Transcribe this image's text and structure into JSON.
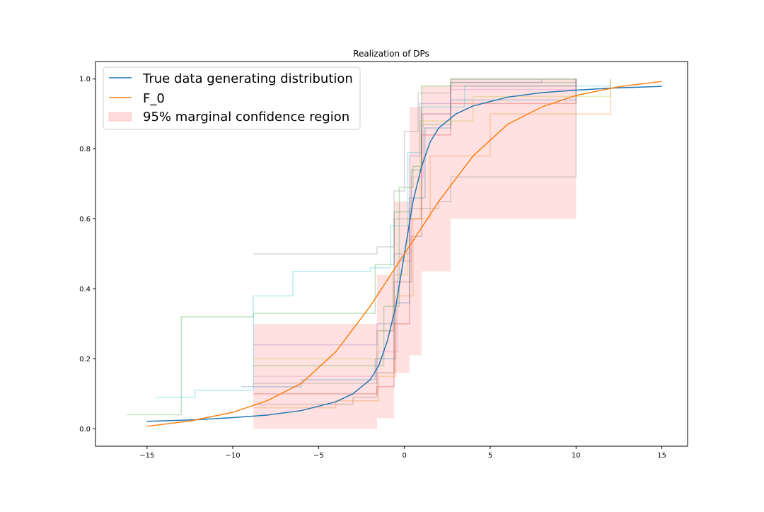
{
  "chart_data": {
    "type": "line",
    "title": "Realization of DPs",
    "xlabel": "",
    "ylabel": "",
    "xlim": [
      -18.0,
      16.5
    ],
    "ylim": [
      -0.05,
      1.05
    ],
    "x_ticks": [
      -15,
      -10,
      -5,
      0,
      5,
      10,
      15
    ],
    "y_ticks": [
      0.0,
      0.2,
      0.4,
      0.6,
      0.8,
      1.0
    ],
    "x_tick_labels": [
      "−15",
      "−10",
      "−5",
      "0",
      "5",
      "10",
      "15"
    ],
    "y_tick_labels": [
      "0.0",
      "0.2",
      "0.4",
      "0.6",
      "0.8",
      "1.0"
    ],
    "grid": false,
    "legend_position": "upper-left",
    "series": [
      {
        "name": "True data generating distribution",
        "color": "#1f77b4",
        "x": [
          -15,
          -12,
          -10,
          -8,
          -6,
          -4,
          -3,
          -2,
          -1.5,
          -1,
          -0.5,
          0,
          0.5,
          1,
          1.5,
          2,
          3,
          4,
          6,
          8,
          10,
          12,
          15
        ],
        "y": [
          0.021,
          0.026,
          0.032,
          0.039,
          0.052,
          0.077,
          0.1,
          0.14,
          0.18,
          0.25,
          0.35,
          0.5,
          0.65,
          0.75,
          0.82,
          0.86,
          0.9,
          0.923,
          0.948,
          0.961,
          0.968,
          0.974,
          0.979
        ]
      },
      {
        "name": "F_0",
        "color": "#ff7f0e",
        "x": [
          -15,
          -12.5,
          -10,
          -8,
          -6,
          -4,
          -2,
          0,
          2,
          4,
          6,
          8,
          10,
          12.5,
          15
        ],
        "y": [
          0.007,
          0.022,
          0.047,
          0.08,
          0.13,
          0.22,
          0.35,
          0.5,
          0.65,
          0.78,
          0.87,
          0.92,
          0.953,
          0.978,
          0.993
        ]
      }
    ],
    "confidence_region": {
      "name": "95% marginal confidence region",
      "color": "#ffb3b3",
      "x": [
        -8.8,
        -1.6,
        -1.6,
        -0.6,
        -0.6,
        0.3,
        0.3,
        1.0,
        1.0,
        2.7,
        2.7,
        10.0
      ],
      "lower": [
        0.0,
        0.01,
        0.03,
        0.07,
        0.16,
        0.18,
        0.21,
        0.28,
        0.45,
        0.52,
        0.6,
        0.68
      ],
      "upper": [
        0.3,
        0.36,
        0.44,
        0.52,
        0.65,
        0.78,
        0.92,
        0.97,
        0.98,
        0.99,
        1.0,
        1.0
      ]
    },
    "dp_realizations": [
      {
        "color": "#2ca02c",
        "x": [
          -16.2,
          -13.0,
          -8.8,
          -5.0,
          -1.7,
          -0.6,
          0.4,
          1.0,
          2.7,
          10.0
        ],
        "y": [
          0.04,
          0.32,
          0.33,
          0.33,
          0.47,
          0.62,
          0.74,
          0.87,
          0.99,
          1.0
        ]
      },
      {
        "color": "#17becf",
        "x": [
          -14.5,
          -12.2,
          -8.8,
          -6.5,
          -2.0,
          -0.8,
          0.2,
          1.0,
          3.5,
          12.0
        ],
        "y": [
          0.09,
          0.11,
          0.38,
          0.45,
          0.46,
          0.58,
          0.79,
          0.92,
          0.98,
          1.0
        ]
      },
      {
        "color": "#7f7f7f",
        "x": [
          -8.8,
          -4.0,
          -1.6,
          -0.6,
          0.0,
          0.8,
          2.7,
          10.0
        ],
        "y": [
          0.5,
          0.5,
          0.52,
          0.68,
          0.85,
          0.96,
          1.0,
          1.0
        ]
      },
      {
        "color": "#d62728",
        "x": [
          -8.8,
          -4.5,
          -1.6,
          -0.6,
          0.3,
          1.0,
          2.7,
          10.0
        ],
        "y": [
          0.1,
          0.1,
          0.12,
          0.3,
          0.6,
          0.84,
          0.93,
          1.0
        ]
      },
      {
        "color": "#8c564b",
        "x": [
          -8.8,
          -3.0,
          -1.6,
          -0.6,
          0.4,
          1.0,
          2.7,
          10.0
        ],
        "y": [
          0.07,
          0.09,
          0.16,
          0.42,
          0.55,
          0.9,
          0.98,
          1.0
        ]
      },
      {
        "color": "#1f77b4",
        "x": [
          -9.5,
          -6.0,
          -1.7,
          -0.5,
          0.3,
          1.2,
          2.7,
          10.0
        ],
        "y": [
          0.12,
          0.14,
          0.2,
          0.36,
          0.66,
          0.86,
          0.94,
          1.0
        ]
      },
      {
        "color": "#bcbd22",
        "x": [
          -8.8,
          -2.5,
          -1.5,
          -0.7,
          0.2,
          0.9,
          4.0,
          12.0
        ],
        "y": [
          0.2,
          0.2,
          0.28,
          0.44,
          0.6,
          0.88,
          0.95,
          1.0
        ]
      },
      {
        "color": "#e377c2",
        "x": [
          -8.8,
          -5.5,
          -1.6,
          -0.4,
          0.4,
          1.1,
          2.7,
          10.0
        ],
        "y": [
          0.15,
          0.15,
          0.22,
          0.48,
          0.72,
          0.9,
          0.97,
          1.0
        ]
      },
      {
        "color": "#9467bd",
        "x": [
          -8.8,
          -3.5,
          -1.6,
          -0.6,
          0.3,
          0.9,
          2.7,
          8.0
        ],
        "y": [
          0.24,
          0.24,
          0.3,
          0.5,
          0.78,
          0.93,
          0.99,
          1.0
        ]
      },
      {
        "color": "#ff7f0e",
        "x": [
          -8.8,
          -4.0,
          -1.5,
          -0.5,
          0.5,
          1.5,
          5.0,
          12.0
        ],
        "y": [
          0.06,
          0.08,
          0.15,
          0.38,
          0.6,
          0.78,
          0.9,
          1.0
        ]
      },
      {
        "color": "#2ca02c",
        "x": [
          -8.8,
          -2.0,
          -1.2,
          -0.3,
          0.5,
          1.0,
          2.7,
          10.0
        ],
        "y": [
          0.18,
          0.18,
          0.35,
          0.69,
          0.75,
          0.98,
          1.0,
          1.0
        ]
      },
      {
        "color": "#7f7f7f",
        "x": [
          -8.8,
          -2.8,
          -1.6,
          -0.6,
          0.3,
          2.0,
          2.7,
          10.0
        ],
        "y": [
          0.13,
          0.13,
          0.28,
          0.6,
          0.63,
          0.65,
          0.72,
          1.0
        ]
      }
    ]
  },
  "legend": {
    "items": [
      {
        "label": "True data generating distribution",
        "kind": "line",
        "color": "#1f77b4"
      },
      {
        "label": "F_0",
        "kind": "line",
        "color": "#ff7f0e"
      },
      {
        "label": "95% marginal confidence region",
        "kind": "patch",
        "color": "#ffb3b3"
      }
    ]
  },
  "colors": {
    "axes": "#000000",
    "background": "#ffffff"
  }
}
